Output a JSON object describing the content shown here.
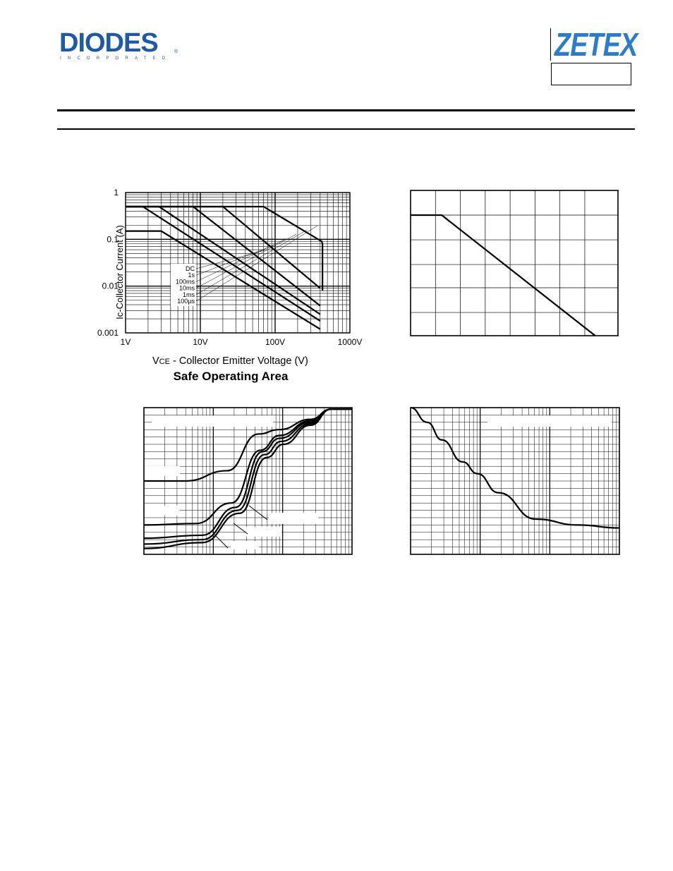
{
  "header": {
    "brand_left": "DIODES",
    "brand_left_sub": "INCORPORATED",
    "brand_left_reg": "®",
    "brand_right": "ZETEX"
  },
  "charts": {
    "soa": {
      "title": "Safe Operating Area",
      "xlabel_prefix": "V",
      "xlabel_sub": "CE",
      "xlabel_rest": " - Collector Emitter Voltage (V)",
      "ylabel": "Ic-Collector Current (A)"
    }
  },
  "chart_data": [
    {
      "type": "line",
      "title": "Safe Operating Area",
      "xlabel": "VCE - Collector Emitter Voltage (V)",
      "ylabel": "Ic-Collector Current (A)",
      "xscale": "log",
      "yscale": "log",
      "xlim": [
        1,
        1000
      ],
      "ylim": [
        0.001,
        1
      ],
      "xticks": [
        "1V",
        "10V",
        "100V",
        "1000V"
      ],
      "yticks": [
        "0.001",
        "0.01",
        "0.1",
        "1"
      ],
      "grid": true,
      "legend": [
        "DC",
        "1s",
        "100ms",
        "10ms",
        "1ms",
        "100µs"
      ],
      "series": [
        {
          "name": "DC",
          "x": [
            1,
            3,
            400
          ],
          "y": [
            0.15,
            0.15,
            0.0012
          ]
        },
        {
          "name": "1s",
          "x": [
            1,
            1.7,
            400
          ],
          "y": [
            0.5,
            0.5,
            0.0018
          ]
        },
        {
          "name": "100ms",
          "x": [
            1,
            2.8,
            400
          ],
          "y": [
            0.5,
            0.5,
            0.0025
          ]
        },
        {
          "name": "10ms",
          "x": [
            1,
            8,
            400
          ],
          "y": [
            0.5,
            0.5,
            0.0038
          ]
        },
        {
          "name": "1ms",
          "x": [
            1,
            20,
            400
          ],
          "y": [
            0.5,
            0.5,
            0.009
          ]
        },
        {
          "name": "100µs",
          "x": [
            1,
            70,
            420,
            430,
            430
          ],
          "y": [
            0.5,
            0.5,
            0.09,
            0.08,
            0.008
          ]
        }
      ]
    },
    {
      "type": "line",
      "title": "",
      "xlabel": "",
      "ylabel": "",
      "xscale": "linear",
      "yscale": "linear",
      "grid": true,
      "series": [
        {
          "name": "",
          "x": [
            0,
            0.15,
            0.89
          ],
          "y": [
            0.83,
            0.83,
            0.0
          ]
        }
      ]
    },
    {
      "type": "line",
      "title": "",
      "xlabel": "",
      "ylabel": "",
      "xscale": "log",
      "grid": true,
      "series": [
        {
          "name": "",
          "x": [
            0.0,
            0.2,
            0.4,
            0.55,
            0.65,
            0.8,
            0.9,
            1.0
          ],
          "y": [
            0.5,
            0.5,
            0.57,
            0.82,
            0.85,
            0.92,
            0.99,
            0.99
          ]
        },
        {
          "name": "",
          "x": [
            0.0,
            0.25,
            0.42,
            0.56,
            0.65,
            0.8,
            0.9,
            1.0
          ],
          "y": [
            0.2,
            0.21,
            0.35,
            0.71,
            0.81,
            0.91,
            0.99,
            0.99
          ]
        },
        {
          "name": "",
          "x": [
            0.0,
            0.28,
            0.44,
            0.57,
            0.65,
            0.8,
            0.9,
            1.0
          ],
          "y": [
            0.11,
            0.13,
            0.32,
            0.7,
            0.79,
            0.9,
            0.99,
            0.99
          ]
        },
        {
          "name": "",
          "x": [
            0.0,
            0.28,
            0.45,
            0.58,
            0.66,
            0.8,
            0.9,
            1.0
          ],
          "y": [
            0.07,
            0.1,
            0.3,
            0.68,
            0.77,
            0.89,
            0.99,
            0.99
          ]
        },
        {
          "name": "",
          "x": [
            0.0,
            0.28,
            0.46,
            0.59,
            0.67,
            0.8,
            0.9,
            1.0
          ],
          "y": [
            0.04,
            0.08,
            0.28,
            0.66,
            0.75,
            0.88,
            0.99,
            0.99
          ]
        }
      ]
    },
    {
      "type": "line",
      "title": "",
      "xlabel": "",
      "ylabel": "",
      "xscale": "log",
      "grid": true,
      "series": [
        {
          "name": "",
          "x": [
            0.0,
            0.08,
            0.15,
            0.25,
            0.32,
            0.42,
            0.6,
            0.8,
            1.0
          ],
          "y": [
            1.0,
            0.9,
            0.78,
            0.63,
            0.55,
            0.42,
            0.24,
            0.2,
            0.18
          ]
        }
      ]
    }
  ]
}
